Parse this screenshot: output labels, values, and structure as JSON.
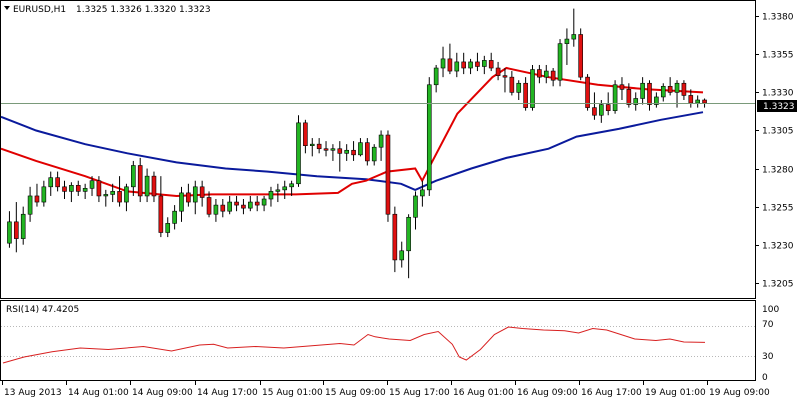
{
  "header": {
    "symbol_tf": "EURUSD,H1",
    "ohlc": "1.3325 1.3326 1.3320 1.3323"
  },
  "colors": {
    "bull": "#22b522",
    "bear": "#e01010",
    "ma_fast": "#e00000",
    "ma_slow": "#0a1a9c",
    "rsi": "#d82020",
    "current_line": "#7a9a7a"
  },
  "rsi_panel": {
    "title": "RSI(14) 47.4205",
    "levels": [
      "100",
      "70",
      "30",
      "0"
    ]
  },
  "chart_data": [
    {
      "type": "candlestick",
      "title": "EURUSD,H1",
      "ylim": [
        1.3195,
        1.339
      ],
      "yticks": [
        "1.3380",
        "1.3355",
        "1.3330",
        "1.3305",
        "1.3280",
        "1.3255",
        "1.3230",
        "1.3205"
      ],
      "current_price": "1.3323",
      "x_labels": [
        "13 Aug 2013",
        "14 Aug 01:00",
        "14 Aug 09:00",
        "14 Aug 17:00",
        "15 Aug 01:00",
        "15 Aug 09:00",
        "15 Aug 17:00",
        "16 Aug 01:00",
        "16 Aug 09:00",
        "16 Aug 17:00",
        "19 Aug 01:00",
        "19 Aug 09:00"
      ],
      "candles": [
        [
          1.3231,
          1.3252,
          1.3228,
          1.3245
        ],
        [
          1.3245,
          1.3258,
          1.3225,
          1.3234
        ],
        [
          1.3234,
          1.3255,
          1.323,
          1.325
        ],
        [
          1.325,
          1.3268,
          1.3245,
          1.3262
        ],
        [
          1.3262,
          1.327,
          1.3255,
          1.3258
        ],
        [
          1.3258,
          1.3272,
          1.3255,
          1.3268
        ],
        [
          1.3268,
          1.3278,
          1.3262,
          1.3274
        ],
        [
          1.3274,
          1.3278,
          1.3265,
          1.3268
        ],
        [
          1.3268,
          1.3272,
          1.326,
          1.3265
        ],
        [
          1.3265,
          1.3271,
          1.3258,
          1.3269
        ],
        [
          1.3269,
          1.3272,
          1.3262,
          1.3265
        ],
        [
          1.3265,
          1.327,
          1.326,
          1.3267
        ],
        [
          1.3267,
          1.3275,
          1.3262,
          1.3272
        ],
        [
          1.3272,
          1.3275,
          1.3258,
          1.3262
        ],
        [
          1.3262,
          1.3266,
          1.3255,
          1.3263
        ],
        [
          1.3263,
          1.327,
          1.3258,
          1.3265
        ],
        [
          1.3265,
          1.3275,
          1.3255,
          1.3258
        ],
        [
          1.3258,
          1.327,
          1.3252,
          1.3268
        ],
        [
          1.3268,
          1.3285,
          1.3262,
          1.3282
        ],
        [
          1.3282,
          1.3287,
          1.3258,
          1.3262
        ],
        [
          1.3262,
          1.328,
          1.3258,
          1.3275
        ],
        [
          1.3275,
          1.3278,
          1.3258,
          1.3262
        ],
        [
          1.3262,
          1.3275,
          1.3235,
          1.3238
        ],
        [
          1.3238,
          1.3248,
          1.3235,
          1.3244
        ],
        [
          1.3244,
          1.3256,
          1.324,
          1.3252
        ],
        [
          1.3252,
          1.3268,
          1.3245,
          1.3264
        ],
        [
          1.3264,
          1.327,
          1.3255,
          1.3258
        ],
        [
          1.3258,
          1.3272,
          1.325,
          1.3268
        ],
        [
          1.3268,
          1.3272,
          1.3255,
          1.3261
        ],
        [
          1.3261,
          1.3265,
          1.3248,
          1.325
        ],
        [
          1.325,
          1.326,
          1.3245,
          1.3256
        ],
        [
          1.3256,
          1.326,
          1.3248,
          1.3252
        ],
        [
          1.3252,
          1.3262,
          1.325,
          1.3258
        ],
        [
          1.3258,
          1.3262,
          1.3252,
          1.3256
        ],
        [
          1.3256,
          1.326,
          1.325,
          1.3254
        ],
        [
          1.3254,
          1.3262,
          1.3252,
          1.3258
        ],
        [
          1.3258,
          1.3262,
          1.3252,
          1.3256
        ],
        [
          1.3256,
          1.3262,
          1.3252,
          1.326
        ],
        [
          1.326,
          1.3268,
          1.3255,
          1.3265
        ],
        [
          1.3265,
          1.327,
          1.3258,
          1.3266
        ],
        [
          1.3266,
          1.3272,
          1.326,
          1.3268
        ],
        [
          1.3268,
          1.3272,
          1.3262,
          1.327
        ],
        [
          1.327,
          1.3315,
          1.3268,
          1.331
        ],
        [
          1.331,
          1.3312,
          1.329,
          1.3295
        ],
        [
          1.3295,
          1.33,
          1.3288,
          1.3296
        ],
        [
          1.3296,
          1.33,
          1.329,
          1.3293
        ],
        [
          1.3293,
          1.3298,
          1.3288,
          1.3292
        ],
        [
          1.3292,
          1.3296,
          1.3285,
          1.3293
        ],
        [
          1.3293,
          1.3298,
          1.3278,
          1.329
        ],
        [
          1.329,
          1.3296,
          1.3285,
          1.3292
        ],
        [
          1.3292,
          1.3298,
          1.3285,
          1.3289
        ],
        [
          1.3289,
          1.33,
          1.3288,
          1.3297
        ],
        [
          1.3297,
          1.33,
          1.3282,
          1.3285
        ],
        [
          1.3285,
          1.3296,
          1.3282,
          1.3294
        ],
        [
          1.3294,
          1.3305,
          1.3285,
          1.3302
        ],
        [
          1.3302,
          1.3305,
          1.3245,
          1.325
        ],
        [
          1.325,
          1.3255,
          1.3212,
          1.322
        ],
        [
          1.322,
          1.3232,
          1.3215,
          1.3226
        ],
        [
          1.3226,
          1.325,
          1.3208,
          1.3248
        ],
        [
          1.3248,
          1.3265,
          1.324,
          1.3262
        ],
        [
          1.3262,
          1.3272,
          1.3255,
          1.3266
        ],
        [
          1.3266,
          1.334,
          1.3262,
          1.3335
        ],
        [
          1.3335,
          1.3348,
          1.333,
          1.3346
        ],
        [
          1.3346,
          1.336,
          1.334,
          1.3352
        ],
        [
          1.3352,
          1.3362,
          1.3342,
          1.3344
        ],
        [
          1.3344,
          1.3356,
          1.334,
          1.335
        ],
        [
          1.335,
          1.3356,
          1.3342,
          1.3346
        ],
        [
          1.3346,
          1.3352,
          1.3342,
          1.335
        ],
        [
          1.335,
          1.3356,
          1.3344,
          1.3347
        ],
        [
          1.3347,
          1.3354,
          1.3342,
          1.3351
        ],
        [
          1.3351,
          1.3356,
          1.3344,
          1.3346
        ],
        [
          1.3346,
          1.335,
          1.3338,
          1.3341
        ],
        [
          1.3341,
          1.3346,
          1.333,
          1.334
        ],
        [
          1.334,
          1.3344,
          1.3328,
          1.333
        ],
        [
          1.333,
          1.3338,
          1.3325,
          1.3336
        ],
        [
          1.3336,
          1.334,
          1.3318,
          1.332
        ],
        [
          1.332,
          1.3348,
          1.3318,
          1.3345
        ],
        [
          1.3345,
          1.3348,
          1.3336,
          1.334
        ],
        [
          1.334,
          1.3348,
          1.3336,
          1.3344
        ],
        [
          1.3344,
          1.3346,
          1.3334,
          1.3338
        ],
        [
          1.3338,
          1.3365,
          1.3334,
          1.3362
        ],
        [
          1.3362,
          1.3372,
          1.3348,
          1.3365
        ],
        [
          1.3365,
          1.3385,
          1.336,
          1.3368
        ],
        [
          1.3368,
          1.3372,
          1.3338,
          1.334
        ],
        [
          1.334,
          1.3342,
          1.3318,
          1.332
        ],
        [
          1.332,
          1.333,
          1.3312,
          1.3315
        ],
        [
          1.3315,
          1.3325,
          1.331,
          1.3322
        ],
        [
          1.3322,
          1.333,
          1.3315,
          1.3318
        ],
        [
          1.3318,
          1.3338,
          1.3316,
          1.3335
        ],
        [
          1.3335,
          1.334,
          1.3325,
          1.3332
        ],
        [
          1.3332,
          1.3336,
          1.332,
          1.3322
        ],
        [
          1.3322,
          1.333,
          1.3318,
          1.3326
        ],
        [
          1.3326,
          1.334,
          1.3322,
          1.3336
        ],
        [
          1.3336,
          1.3338,
          1.3318,
          1.3322
        ],
        [
          1.3322,
          1.333,
          1.332,
          1.3327
        ],
        [
          1.3327,
          1.3336,
          1.3324,
          1.3334
        ],
        [
          1.3334,
          1.334,
          1.3328,
          1.333
        ],
        [
          1.333,
          1.3338,
          1.332,
          1.3336
        ],
        [
          1.3336,
          1.3338,
          1.3325,
          1.3328
        ],
        [
          1.3328,
          1.3332,
          1.332,
          1.3323
        ],
        [
          1.3323,
          1.3328,
          1.332,
          1.3325
        ],
        [
          1.3325,
          1.3326,
          1.332,
          1.3323
        ]
      ],
      "ma_fast": [
        [
          1.3293,
          0
        ],
        [
          1.3285,
          0.05
        ],
        [
          1.3275,
          0.12
        ],
        [
          1.3265,
          0.18
        ],
        [
          1.3262,
          0.25
        ],
        [
          1.3263,
          0.3
        ],
        [
          1.3263,
          0.42
        ],
        [
          1.3264,
          0.48
        ],
        [
          1.327,
          0.5
        ],
        [
          1.3272,
          0.52
        ],
        [
          1.3278,
          0.55
        ],
        [
          1.328,
          0.59
        ],
        [
          1.3272,
          0.6
        ],
        [
          1.3316,
          0.65
        ],
        [
          1.334,
          0.7
        ],
        [
          1.3346,
          0.72
        ],
        [
          1.334,
          0.78
        ],
        [
          1.3335,
          0.85
        ],
        [
          1.3332,
          0.92
        ],
        [
          1.333,
          1.0
        ]
      ],
      "ma_slow": [
        [
          1.3314,
          0
        ],
        [
          1.3305,
          0.05
        ],
        [
          1.3296,
          0.12
        ],
        [
          1.329,
          0.18
        ],
        [
          1.3284,
          0.25
        ],
        [
          1.328,
          0.32
        ],
        [
          1.3278,
          0.38
        ],
        [
          1.3275,
          0.45
        ],
        [
          1.3273,
          0.52
        ],
        [
          1.327,
          0.57
        ],
        [
          1.3266,
          0.59
        ],
        [
          1.3272,
          0.62
        ],
        [
          1.328,
          0.67
        ],
        [
          1.3287,
          0.72
        ],
        [
          1.3293,
          0.78
        ],
        [
          1.3301,
          0.82
        ],
        [
          1.3306,
          0.88
        ],
        [
          1.3312,
          0.94
        ],
        [
          1.3317,
          1.0
        ]
      ]
    },
    {
      "type": "line",
      "title": "RSI(14) 47.4205",
      "ylim": [
        0,
        100
      ],
      "yticks": [
        "100",
        "70",
        "30",
        "0"
      ],
      "reference_lines": [
        70,
        30
      ],
      "values": [
        [
          20,
          0
        ],
        [
          28,
          0.03
        ],
        [
          35,
          0.07
        ],
        [
          40,
          0.11
        ],
        [
          38,
          0.15
        ],
        [
          42,
          0.2
        ],
        [
          36,
          0.24
        ],
        [
          44,
          0.28
        ],
        [
          45,
          0.3
        ],
        [
          40,
          0.32
        ],
        [
          42,
          0.36
        ],
        [
          40,
          0.4
        ],
        [
          43,
          0.44
        ],
        [
          46,
          0.48
        ],
        [
          44,
          0.5
        ],
        [
          58,
          0.52
        ],
        [
          55,
          0.53
        ],
        [
          52,
          0.55
        ],
        [
          50,
          0.58
        ],
        [
          58,
          0.6
        ],
        [
          62,
          0.62
        ],
        [
          45,
          0.64
        ],
        [
          28,
          0.65
        ],
        [
          24,
          0.66
        ],
        [
          38,
          0.68
        ],
        [
          58,
          0.7
        ],
        [
          68,
          0.72
        ],
        [
          66,
          0.74
        ],
        [
          64,
          0.77
        ],
        [
          63,
          0.8
        ],
        [
          60,
          0.82
        ],
        [
          66,
          0.84
        ],
        [
          64,
          0.86
        ],
        [
          58,
          0.88
        ],
        [
          52,
          0.9
        ],
        [
          50,
          0.93
        ],
        [
          52,
          0.95
        ],
        [
          48,
          0.97
        ],
        [
          47.42,
          1.0
        ]
      ]
    }
  ]
}
